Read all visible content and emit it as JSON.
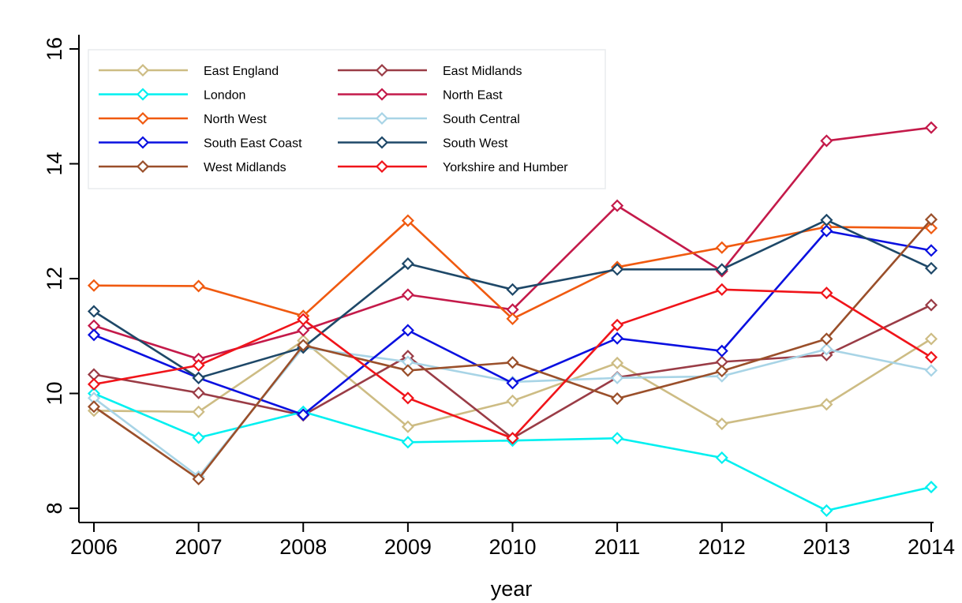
{
  "chart_data": {
    "type": "line",
    "xlabel": "year",
    "ylabel": "",
    "x": [
      2006,
      2007,
      2008,
      2009,
      2010,
      2011,
      2012,
      2013,
      2014
    ],
    "x_tick_labels": [
      "2006",
      "2007",
      "2008",
      "2009",
      "2010",
      "2011",
      "2012",
      "2013",
      "2014"
    ],
    "xlim": [
      2006,
      2014
    ],
    "ylim": [
      8,
      16
    ],
    "y_ticks": [
      8,
      10,
      12,
      14,
      16
    ],
    "y_tick_labels": [
      "8",
      "10",
      "12",
      "14",
      "16"
    ],
    "grid": false,
    "legend_position": "top-left",
    "marker": "hollow-diamond",
    "series": [
      {
        "name": "East England",
        "color": "#cdbc84",
        "values": [
          9.7,
          9.68,
          10.92,
          9.42,
          9.87,
          10.53,
          9.47,
          9.81,
          10.95
        ]
      },
      {
        "name": "East Midlands",
        "color": "#9a3c46",
        "values": [
          10.33,
          10.01,
          9.62,
          10.65,
          9.22,
          10.28,
          10.55,
          10.67,
          11.54
        ]
      },
      {
        "name": "London",
        "color": "#00f0f0",
        "values": [
          10.0,
          9.23,
          9.68,
          9.15,
          9.18,
          9.22,
          8.88,
          7.96,
          8.37
        ]
      },
      {
        "name": "North East",
        "color": "#c41a4a",
        "values": [
          11.18,
          10.6,
          11.1,
          11.72,
          11.46,
          13.27,
          12.13,
          14.4,
          14.63
        ]
      },
      {
        "name": "North West",
        "color": "#f05a10",
        "values": [
          11.88,
          11.87,
          11.35,
          13.01,
          11.3,
          12.2,
          12.54,
          12.9,
          12.88
        ]
      },
      {
        "name": "South Central",
        "color": "#a8d4e6",
        "values": [
          9.92,
          8.55,
          10.8,
          10.55,
          10.2,
          10.27,
          10.3,
          10.77,
          10.4
        ]
      },
      {
        "name": "South East Coast",
        "color": "#0a10e0",
        "values": [
          11.02,
          10.27,
          9.63,
          11.1,
          10.18,
          10.96,
          10.74,
          12.83,
          12.49
        ]
      },
      {
        "name": "South West",
        "color": "#1e4868",
        "values": [
          11.43,
          10.27,
          10.8,
          12.26,
          11.81,
          12.16,
          12.16,
          13.02,
          12.18
        ]
      },
      {
        "name": "West Midlands",
        "color": "#9a4f2a",
        "values": [
          9.77,
          8.51,
          10.84,
          10.4,
          10.54,
          9.91,
          10.39,
          10.95,
          13.03
        ]
      },
      {
        "name": "Yorkshire and Humber",
        "color": "#f0141a",
        "values": [
          10.16,
          10.49,
          11.29,
          9.92,
          9.22,
          11.19,
          11.81,
          11.75,
          10.63
        ]
      }
    ]
  }
}
